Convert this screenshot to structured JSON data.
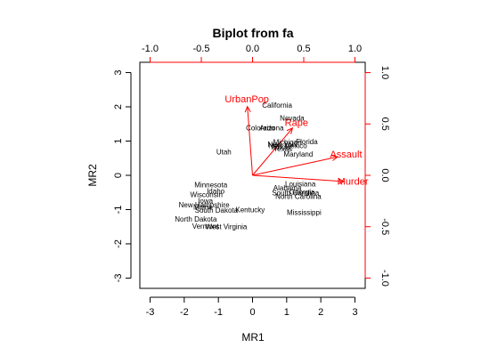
{
  "chart_data": {
    "type": "scatter",
    "title": "Biplot from fa",
    "xlabel": "MR1",
    "ylabel": "MR2",
    "xlim": [
      -3.3,
      3.3
    ],
    "ylim": [
      -3.3,
      3.3
    ],
    "top_right_lim": [
      -1.1,
      1.1
    ],
    "bottom_ticks": [
      "-3",
      "-2",
      "-1",
      "0",
      "1",
      "2",
      "3"
    ],
    "left_ticks": [
      "-3",
      "-2",
      "-1",
      "0",
      "1",
      "2",
      "3"
    ],
    "top_ticks": [
      "-1.0",
      "-0.5",
      "0.0",
      "0.5",
      "1.0"
    ],
    "right_ticks": [
      "-1.0",
      "-0.5",
      "0.0",
      "0.5",
      "1.0"
    ],
    "grid": false,
    "colors": {
      "scores": "#000000",
      "loadings": "#ff0000",
      "top_right_axes": "#ff0000"
    },
    "loadings": [
      {
        "label": "Murder",
        "x": 0.89,
        "y": -0.06
      },
      {
        "label": "Assault",
        "x": 0.83,
        "y": 0.18
      },
      {
        "label": "UrbanPop",
        "x": -0.05,
        "y": 0.67
      },
      {
        "label": "Rape",
        "x": 0.39,
        "y": 0.46
      }
    ],
    "scores": [
      {
        "label": "California",
        "x": 0.72,
        "y": 2.03
      },
      {
        "label": "Nevada",
        "x": 1.16,
        "y": 1.65
      },
      {
        "label": "Colorado",
        "x": 0.23,
        "y": 1.37
      },
      {
        "label": "Arizona",
        "x": 0.56,
        "y": 1.37
      },
      {
        "label": "New York",
        "x": 0.88,
        "y": 0.88
      },
      {
        "label": "Michigan",
        "x": 1.02,
        "y": 0.95
      },
      {
        "label": "Florida",
        "x": 1.59,
        "y": 0.97
      },
      {
        "label": "Texas",
        "x": 0.89,
        "y": 0.76
      },
      {
        "label": "Illinois",
        "x": 0.83,
        "y": 0.81
      },
      {
        "label": "New Mexico",
        "x": 1.03,
        "y": 0.85
      },
      {
        "label": "Maryland",
        "x": 1.34,
        "y": 0.6
      },
      {
        "label": "Utah",
        "x": -0.84,
        "y": 0.66
      },
      {
        "label": "Louisiana",
        "x": 1.4,
        "y": -0.27
      },
      {
        "label": "Alabama",
        "x": 1.02,
        "y": -0.39
      },
      {
        "label": "Georgia",
        "x": 1.45,
        "y": -0.5
      },
      {
        "label": "South Carolina",
        "x": 1.26,
        "y": -0.53
      },
      {
        "label": "North Carolina",
        "x": 1.34,
        "y": -0.63
      },
      {
        "label": "Mississippi",
        "x": 1.51,
        "y": -1.1
      },
      {
        "label": "Minnesota",
        "x": -1.22,
        "y": -0.3
      },
      {
        "label": "Idaho",
        "x": -1.08,
        "y": -0.48
      },
      {
        "label": "Wisconsin",
        "x": -1.35,
        "y": -0.58
      },
      {
        "label": "Iowa",
        "x": -1.38,
        "y": -0.77
      },
      {
        "label": "New Hampshire",
        "x": -1.42,
        "y": -0.88
      },
      {
        "label": "Maine",
        "x": -1.45,
        "y": -0.95
      },
      {
        "label": "South Dakota",
        "x": -1.06,
        "y": -1.04
      },
      {
        "label": "Kentucky",
        "x": -0.07,
        "y": -1.03
      },
      {
        "label": "North Dakota",
        "x": -1.66,
        "y": -1.3
      },
      {
        "label": "Vermont",
        "x": -1.38,
        "y": -1.51
      },
      {
        "label": "West Virginia",
        "x": -0.77,
        "y": -1.52
      }
    ]
  }
}
